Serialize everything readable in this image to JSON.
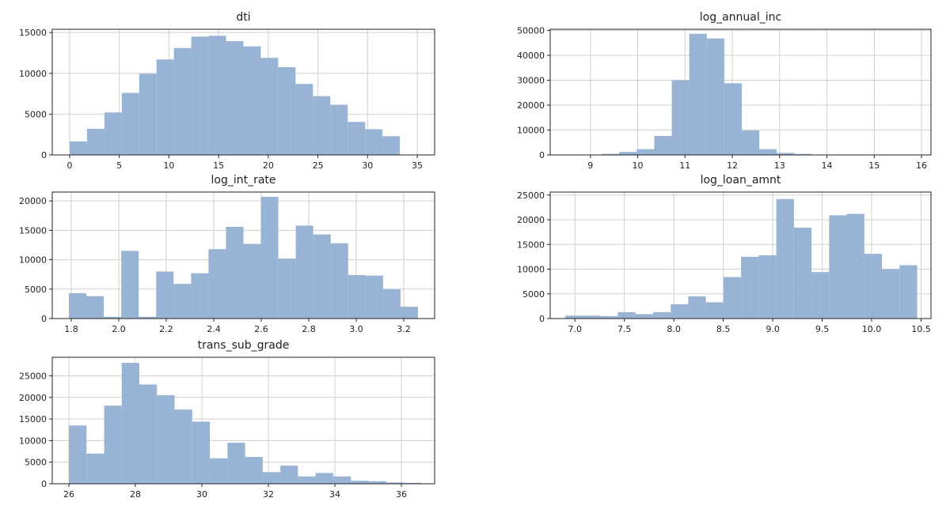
{
  "colors": {
    "bar": "#98b3d4",
    "grid": "#cfcfcf",
    "axis": "#222222"
  },
  "chart_data": [
    {
      "type": "bar",
      "title": "dti",
      "grid": true,
      "xlim": [
        -1.75,
        36.75
      ],
      "ylim": [
        0,
        15400
      ],
      "xticks": [
        0,
        5,
        10,
        15,
        20,
        25,
        30,
        35
      ],
      "yticks": [
        0,
        5000,
        10000,
        15000
      ],
      "bin_start": 0,
      "bin_width": 1.75,
      "values": [
        1650,
        3200,
        5200,
        7600,
        9950,
        11700,
        13100,
        14500,
        14600,
        13950,
        13300,
        11900,
        10750,
        8700,
        7200,
        6150,
        4050,
        3150,
        2300,
        0
      ]
    },
    {
      "type": "bar",
      "title": "log_annual_inc",
      "grid": true,
      "xlim": [
        8.15,
        16.2
      ],
      "ylim": [
        0,
        50500
      ],
      "xticks": [
        9,
        10,
        11,
        12,
        13,
        14,
        15,
        16
      ],
      "yticks": [
        0,
        10000,
        20000,
        30000,
        40000,
        50000
      ],
      "bin_start": 8.5,
      "bin_width": 0.37,
      "values": [
        0,
        0,
        400,
        1200,
        2300,
        7600,
        30000,
        48700,
        46800,
        28800,
        9800,
        2300,
        800,
        400,
        100,
        50,
        0,
        0,
        0,
        0
      ]
    },
    {
      "type": "bar",
      "title": "log_int_rate",
      "grid": true,
      "xlim": [
        1.72,
        3.33
      ],
      "ylim": [
        0,
        21500
      ],
      "xticks": [
        "1.8",
        "2.0",
        "2.2",
        "2.4",
        "2.6",
        "2.8",
        "3.0",
        "3.2"
      ],
      "yticks": [
        0,
        5000,
        10000,
        15000,
        20000
      ],
      "bin_start": 1.79,
      "bin_width": 0.0735,
      "values": [
        4300,
        3800,
        300,
        11500,
        300,
        8000,
        5900,
        7700,
        11800,
        15600,
        12700,
        20700,
        10200,
        15800,
        14300,
        12800,
        7400,
        7300,
        5000,
        2000
      ]
    },
    {
      "type": "bar",
      "title": "log_loan_amnt",
      "grid": true,
      "xlim": [
        6.75,
        10.6
      ],
      "ylim": [
        0,
        25600
      ],
      "xticks": [
        "7.0",
        "7.5",
        "8.0",
        "8.5",
        "9.0",
        "9.5",
        "10.0",
        "10.5"
      ],
      "yticks": [
        0,
        5000,
        10000,
        15000,
        20000,
        25000
      ],
      "bin_start": 6.9,
      "bin_width": 0.178,
      "values": [
        600,
        600,
        500,
        1300,
        900,
        1300,
        2900,
        4500,
        3300,
        8400,
        12500,
        12800,
        24200,
        18400,
        9400,
        20900,
        21200,
        13100,
        10000,
        10800
      ]
    },
    {
      "type": "bar",
      "title": "trans_sub_grade",
      "grid": true,
      "xlim": [
        25.5,
        37.0
      ],
      "ylim": [
        0,
        29300
      ],
      "xticks": [
        26,
        28,
        30,
        32,
        34,
        36
      ],
      "yticks": [
        0,
        5000,
        10000,
        15000,
        20000,
        25000
      ],
      "bin_start": 26,
      "bin_width": 0.53,
      "values": [
        13500,
        7000,
        18100,
        28000,
        23000,
        20500,
        17200,
        14400,
        5900,
        9500,
        6200,
        2700,
        4200,
        1700,
        2500,
        1700,
        700,
        600,
        300,
        200
      ]
    }
  ]
}
